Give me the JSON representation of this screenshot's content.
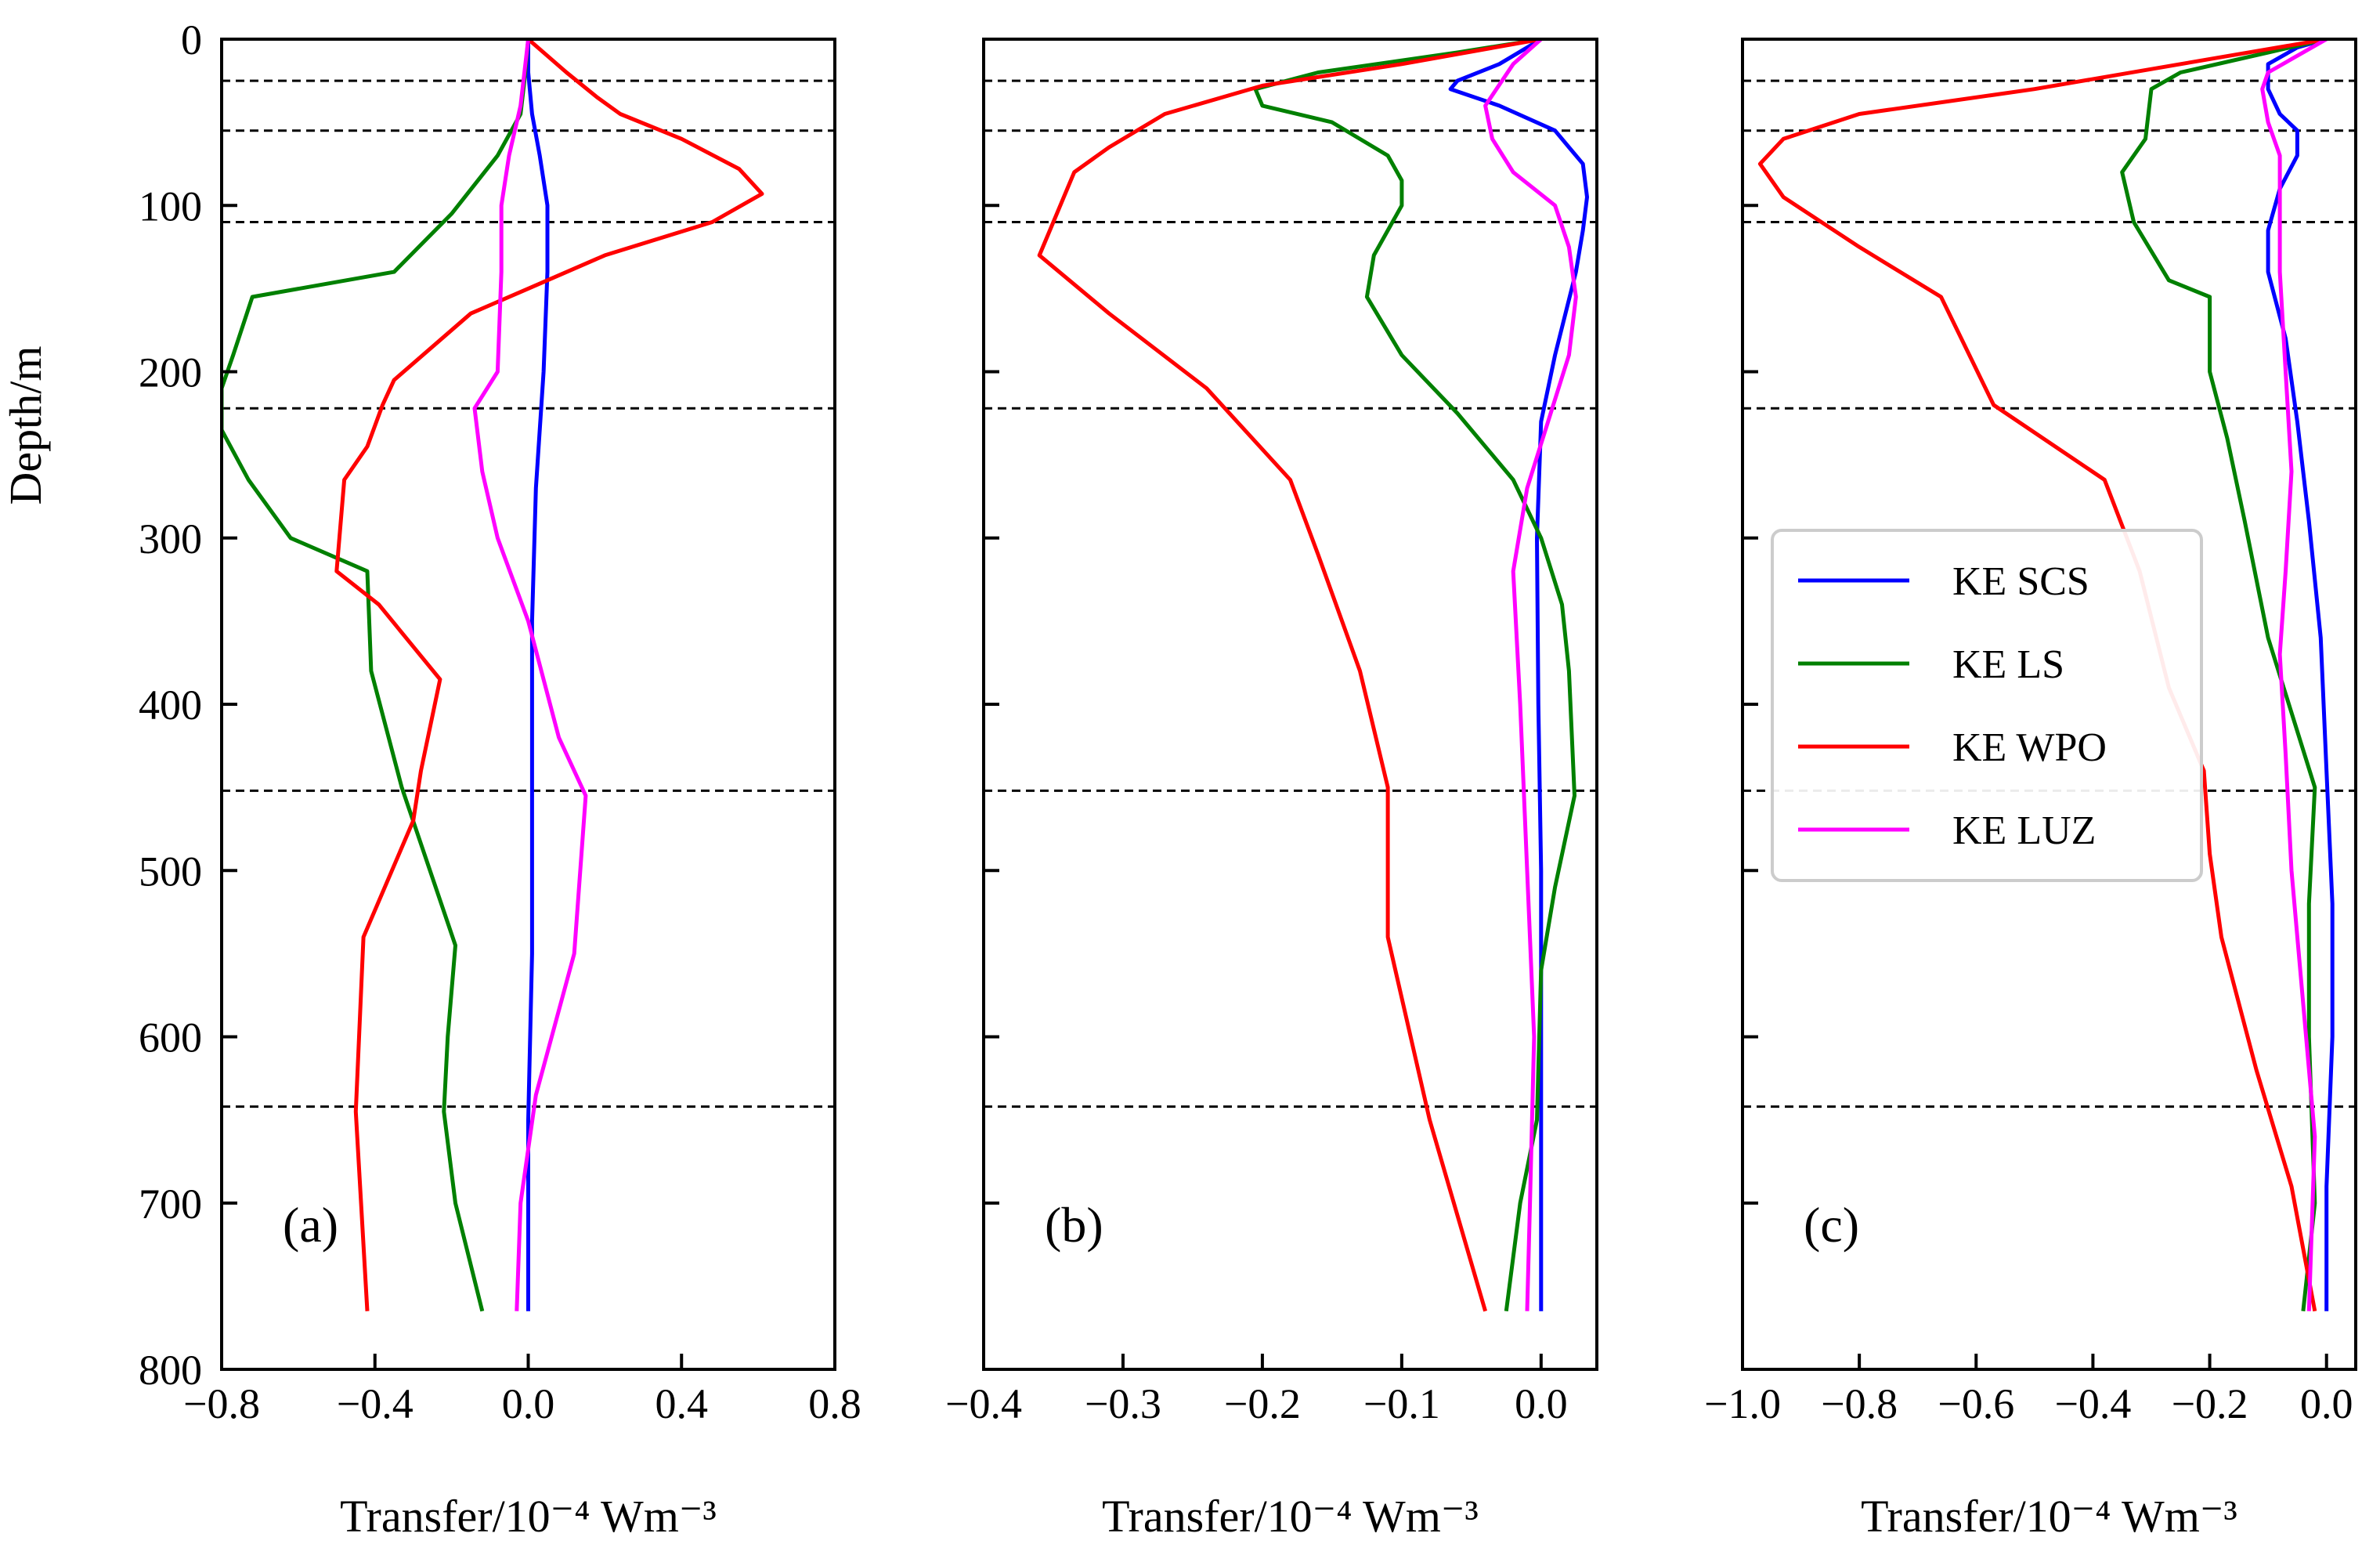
{
  "figure": {
    "ylabel": "Depth/m",
    "reference_depths": [
      25,
      55,
      110,
      222,
      452,
      642
    ]
  },
  "legend": {
    "entries": [
      {
        "name": "KE SCS",
        "color": "#0000ff"
      },
      {
        "name": "KE LS",
        "color": "#008000"
      },
      {
        "name": "KE WPO",
        "color": "#ff0000"
      },
      {
        "name": "KE LUZ",
        "color": "#ff00ff"
      }
    ]
  },
  "chart_data": [
    {
      "type": "line",
      "panel_label": "(a)",
      "xlabel": "Transfer/10⁻⁴ Wm⁻³",
      "ylabel": "Depth/m",
      "xlim": [
        -0.8,
        0.8
      ],
      "ylim": [
        800,
        0
      ],
      "xticks": [
        -0.8,
        -0.4,
        0.0,
        0.4,
        0.8
      ],
      "xtick_labels": [
        "−0.8",
        "−0.4",
        "0.0",
        "0.4",
        "0.8"
      ],
      "yticks": [
        0,
        100,
        200,
        300,
        400,
        500,
        600,
        700,
        800
      ],
      "ytick_labels": [
        "0",
        "100",
        "200",
        "300",
        "400",
        "500",
        "600",
        "700",
        "800"
      ],
      "series": [
        {
          "name": "KE SCS",
          "color": "#0000ff",
          "points": [
            [
              0.0,
              0
            ],
            [
              0.0,
              20
            ],
            [
              0.01,
              45
            ],
            [
              0.03,
              70
            ],
            [
              0.05,
              100
            ],
            [
              0.05,
              140
            ],
            [
              0.04,
              200
            ],
            [
              0.02,
              270
            ],
            [
              0.01,
              350
            ],
            [
              0.01,
              450
            ],
            [
              0.01,
              550
            ],
            [
              0.0,
              650
            ],
            [
              0.0,
              765
            ]
          ]
        },
        {
          "name": "KE LS",
          "color": "#008000",
          "points": [
            [
              0.0,
              0
            ],
            [
              -0.01,
              25
            ],
            [
              -0.02,
              45
            ],
            [
              -0.08,
              70
            ],
            [
              -0.2,
              105
            ],
            [
              -0.35,
              140
            ],
            [
              -0.72,
              155
            ],
            [
              -0.77,
              190
            ],
            [
              -0.8,
              210
            ],
            [
              -0.8,
              235
            ],
            [
              -0.73,
              265
            ],
            [
              -0.62,
              300
            ],
            [
              -0.42,
              320
            ],
            [
              -0.41,
              380
            ],
            [
              -0.33,
              450
            ],
            [
              -0.19,
              545
            ],
            [
              -0.21,
              600
            ],
            [
              -0.22,
              645
            ],
            [
              -0.19,
              700
            ],
            [
              -0.12,
              765
            ]
          ]
        },
        {
          "name": "KE WPO",
          "color": "#ff0000",
          "points": [
            [
              0.0,
              0
            ],
            [
              0.1,
              20
            ],
            [
              0.18,
              35
            ],
            [
              0.24,
              45
            ],
            [
              0.4,
              60
            ],
            [
              0.55,
              78
            ],
            [
              0.61,
              93
            ],
            [
              0.48,
              110
            ],
            [
              0.2,
              130
            ],
            [
              0.0,
              150
            ],
            [
              -0.15,
              165
            ],
            [
              -0.35,
              205
            ],
            [
              -0.38,
              220
            ],
            [
              -0.42,
              245
            ],
            [
              -0.48,
              265
            ],
            [
              -0.5,
              320
            ],
            [
              -0.39,
              340
            ],
            [
              -0.23,
              385
            ],
            [
              -0.28,
              440
            ],
            [
              -0.3,
              470
            ],
            [
              -0.43,
              540
            ],
            [
              -0.45,
              645
            ],
            [
              -0.42,
              765
            ]
          ]
        },
        {
          "name": "KE LUZ",
          "color": "#ff00ff",
          "points": [
            [
              0.0,
              0
            ],
            [
              -0.01,
              20
            ],
            [
              -0.02,
              40
            ],
            [
              -0.05,
              70
            ],
            [
              -0.07,
              100
            ],
            [
              -0.07,
              140
            ],
            [
              -0.08,
              200
            ],
            [
              -0.14,
              222
            ],
            [
              -0.12,
              260
            ],
            [
              -0.08,
              300
            ],
            [
              0.0,
              350
            ],
            [
              0.08,
              420
            ],
            [
              0.15,
              455
            ],
            [
              0.12,
              550
            ],
            [
              0.02,
              635
            ],
            [
              -0.02,
              700
            ],
            [
              -0.03,
              765
            ]
          ]
        }
      ]
    },
    {
      "type": "line",
      "panel_label": "(b)",
      "xlabel": "Transfer/10⁻⁴ Wm⁻³",
      "ylabel": "",
      "xlim": [
        -0.4,
        0.04
      ],
      "ylim": [
        800,
        0
      ],
      "xticks": [
        -0.4,
        -0.3,
        -0.2,
        -0.1,
        0.0
      ],
      "xtick_labels": [
        "−0.4",
        "−0.3",
        "−0.2",
        "−0.1",
        "0.0"
      ],
      "yticks": [
        0,
        100,
        200,
        300,
        400,
        500,
        600,
        700,
        800
      ],
      "ytick_labels": [
        "",
        "",
        "",
        "",
        "",
        "",
        "",
        "",
        ""
      ],
      "series": [
        {
          "name": "KE SCS",
          "color": "#0000ff",
          "points": [
            [
              0.0,
              0
            ],
            [
              -0.03,
              15
            ],
            [
              -0.06,
              25
            ],
            [
              -0.065,
              30
            ],
            [
              -0.03,
              40
            ],
            [
              0.01,
              55
            ],
            [
              0.02,
              65
            ],
            [
              0.03,
              75
            ],
            [
              0.033,
              95
            ],
            [
              0.03,
              115
            ],
            [
              0.025,
              140
            ],
            [
              0.01,
              190
            ],
            [
              0.0,
              230
            ],
            [
              -0.003,
              300
            ],
            [
              -0.002,
              400
            ],
            [
              0.0,
              500
            ],
            [
              0.0,
              600
            ],
            [
              0.0,
              700
            ],
            [
              0.0,
              765
            ]
          ]
        },
        {
          "name": "KE LS",
          "color": "#008000",
          "points": [
            [
              0.0,
              0
            ],
            [
              -0.06,
              8
            ],
            [
              -0.16,
              20
            ],
            [
              -0.205,
              30
            ],
            [
              -0.2,
              40
            ],
            [
              -0.15,
              50
            ],
            [
              -0.11,
              70
            ],
            [
              -0.1,
              85
            ],
            [
              -0.1,
              100
            ],
            [
              -0.12,
              130
            ],
            [
              -0.125,
              155
            ],
            [
              -0.1,
              190
            ],
            [
              -0.06,
              225
            ],
            [
              -0.02,
              265
            ],
            [
              0.0,
              300
            ],
            [
              0.015,
              340
            ],
            [
              0.02,
              380
            ],
            [
              0.024,
              455
            ],
            [
              0.01,
              510
            ],
            [
              0.0,
              560
            ],
            [
              -0.003,
              650
            ],
            [
              -0.015,
              700
            ],
            [
              -0.025,
              765
            ]
          ]
        },
        {
          "name": "KE WPO",
          "color": "#ff0000",
          "points": [
            [
              0.0,
              0
            ],
            [
              -0.1,
              15
            ],
            [
              -0.2,
              28
            ],
            [
              -0.27,
              45
            ],
            [
              -0.31,
              65
            ],
            [
              -0.335,
              80
            ],
            [
              -0.34,
              90
            ],
            [
              -0.35,
              110
            ],
            [
              -0.36,
              130
            ],
            [
              -0.31,
              165
            ],
            [
              -0.24,
              210
            ],
            [
              -0.18,
              265
            ],
            [
              -0.16,
              310
            ],
            [
              -0.13,
              380
            ],
            [
              -0.11,
              450
            ],
            [
              -0.11,
              540
            ],
            [
              -0.08,
              650
            ],
            [
              -0.04,
              765
            ]
          ]
        },
        {
          "name": "KE LUZ",
          "color": "#ff00ff",
          "points": [
            [
              0.0,
              0
            ],
            [
              -0.02,
              15
            ],
            [
              -0.04,
              40
            ],
            [
              -0.035,
              60
            ],
            [
              -0.02,
              80
            ],
            [
              0.01,
              100
            ],
            [
              0.02,
              125
            ],
            [
              0.025,
              155
            ],
            [
              0.02,
              190
            ],
            [
              0.005,
              230
            ],
            [
              -0.01,
              270
            ],
            [
              -0.02,
              320
            ],
            [
              -0.015,
              400
            ],
            [
              -0.01,
              500
            ],
            [
              -0.005,
              600
            ],
            [
              -0.008,
              700
            ],
            [
              -0.01,
              765
            ]
          ]
        }
      ]
    },
    {
      "type": "line",
      "panel_label": "(c)",
      "xlabel": "Transfer/10⁻⁴ Wm⁻³",
      "ylabel": "",
      "xlim": [
        -1.0,
        0.05
      ],
      "ylim": [
        800,
        0
      ],
      "xticks": [
        -1.0,
        -0.8,
        -0.6,
        -0.4,
        -0.2,
        0.0
      ],
      "xtick_labels": [
        "−1.0",
        "−0.8",
        "−0.6",
        "−0.4",
        "−0.2",
        "0.0"
      ],
      "yticks": [
        0,
        100,
        200,
        300,
        400,
        500,
        600,
        700,
        800
      ],
      "ytick_labels": [
        "",
        "",
        "",
        "",
        "",
        "",
        "",
        "",
        ""
      ],
      "series": [
        {
          "name": "KE SCS",
          "color": "#0000ff",
          "points": [
            [
              0.0,
              0
            ],
            [
              -0.05,
              5
            ],
            [
              -0.1,
              15
            ],
            [
              -0.1,
              30
            ],
            [
              -0.08,
              45
            ],
            [
              -0.05,
              55
            ],
            [
              -0.05,
              70
            ],
            [
              -0.08,
              90
            ],
            [
              -0.1,
              115
            ],
            [
              -0.1,
              140
            ],
            [
              -0.07,
              180
            ],
            [
              -0.05,
              230
            ],
            [
              -0.03,
              290
            ],
            [
              -0.01,
              360
            ],
            [
              0.0,
              440
            ],
            [
              0.01,
              520
            ],
            [
              0.01,
              600
            ],
            [
              0.0,
              690
            ],
            [
              0.0,
              765
            ]
          ]
        },
        {
          "name": "KE LS",
          "color": "#008000",
          "points": [
            [
              0.0,
              0
            ],
            [
              -0.1,
              8
            ],
            [
              -0.25,
              20
            ],
            [
              -0.3,
              30
            ],
            [
              -0.31,
              60
            ],
            [
              -0.35,
              80
            ],
            [
              -0.33,
              110
            ],
            [
              -0.27,
              145
            ],
            [
              -0.2,
              155
            ],
            [
              -0.2,
              200
            ],
            [
              -0.17,
              240
            ],
            [
              -0.14,
              290
            ],
            [
              -0.1,
              360
            ],
            [
              -0.02,
              450
            ],
            [
              -0.03,
              520
            ],
            [
              -0.03,
              600
            ],
            [
              -0.02,
              700
            ],
            [
              -0.04,
              765
            ]
          ]
        },
        {
          "name": "KE WPO",
          "color": "#ff0000",
          "points": [
            [
              0.0,
              0
            ],
            [
              -0.25,
              15
            ],
            [
              -0.5,
              30
            ],
            [
              -0.8,
              45
            ],
            [
              -0.93,
              60
            ],
            [
              -0.97,
              75
            ],
            [
              -0.93,
              95
            ],
            [
              -0.8,
              125
            ],
            [
              -0.66,
              155
            ],
            [
              -0.57,
              220
            ],
            [
              -0.38,
              265
            ],
            [
              -0.32,
              320
            ],
            [
              -0.27,
              390
            ],
            [
              -0.21,
              440
            ],
            [
              -0.2,
              490
            ],
            [
              -0.18,
              540
            ],
            [
              -0.12,
              620
            ],
            [
              -0.06,
              690
            ],
            [
              -0.02,
              765
            ]
          ]
        },
        {
          "name": "KE LUZ",
          "color": "#ff00ff",
          "points": [
            [
              0.0,
              0
            ],
            [
              -0.05,
              10
            ],
            [
              -0.1,
              20
            ],
            [
              -0.11,
              30
            ],
            [
              -0.1,
              50
            ],
            [
              -0.08,
              70
            ],
            [
              -0.08,
              95
            ],
            [
              -0.08,
              140
            ],
            [
              -0.07,
              200
            ],
            [
              -0.06,
              260
            ],
            [
              -0.07,
              320
            ],
            [
              -0.08,
              370
            ],
            [
              -0.07,
              430
            ],
            [
              -0.06,
              500
            ],
            [
              -0.04,
              580
            ],
            [
              -0.02,
              660
            ],
            [
              -0.03,
              765
            ]
          ]
        }
      ]
    }
  ]
}
